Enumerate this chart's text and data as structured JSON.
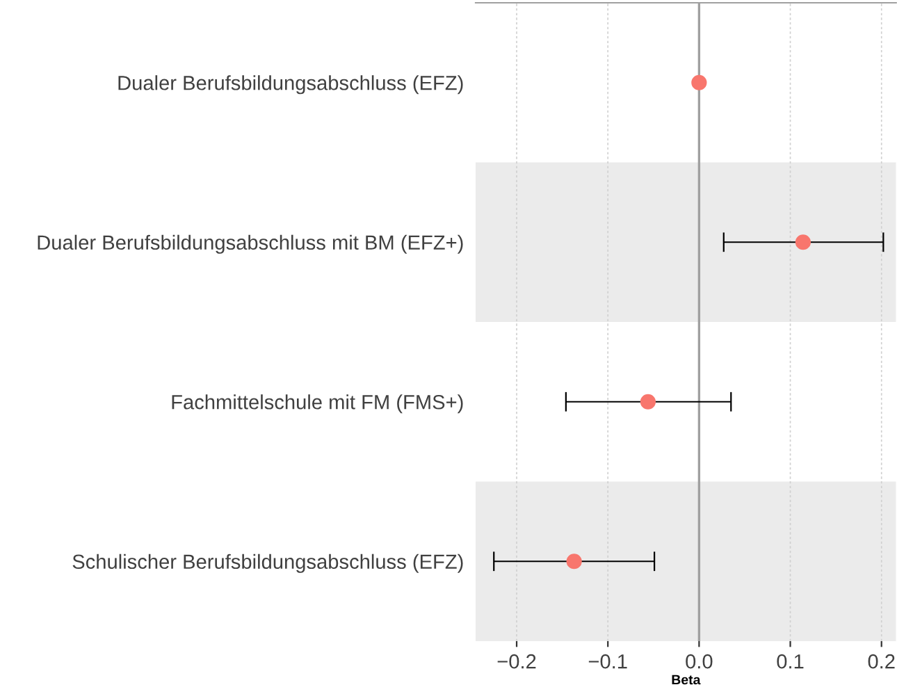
{
  "chart_data": {
    "type": "scatter",
    "orientation": "horizontal",
    "xlabel": "Beta",
    "categories": [
      "Dualer Berufsbildungsabschluss (EFZ)",
      "Dualer Berufsbildungsabschluss mit BM (EFZ+)",
      "Fachmittelschule mit FM (FMS+)",
      "Schulischer Berufsbildungsabschluss (EFZ)"
    ],
    "values": [
      0.0,
      0.114,
      -0.056,
      -0.137
    ],
    "errors": [
      null,
      [
        0.027,
        0.202
      ],
      [
        -0.146,
        0.035
      ],
      [
        -0.225,
        -0.049
      ]
    ],
    "color": "#f8766d",
    "marker": "circle",
    "xlim": [
      -0.245,
      0.216
    ],
    "xticks": [
      {
        "value": -0.2,
        "label": "−0.2"
      },
      {
        "value": -0.1,
        "label": "−0.1"
      },
      {
        "value": 0.0,
        "label": "0.0"
      },
      {
        "value": 0.1,
        "label": "0.1"
      },
      {
        "value": 0.2,
        "label": "0.2"
      }
    ],
    "grid": "x",
    "ref_lines": [
      {
        "axis": "x",
        "value": 0.0,
        "color": "#a0a0a0"
      }
    ],
    "bands": [
      {
        "axis": "y",
        "from": "Dualer Berufsbildungsabschluss mit BM (EFZ+)",
        "to": "Dualer Berufsbildungsabschluss mit BM (EFZ+)",
        "color": "#ebebeb"
      },
      {
        "axis": "y",
        "from": "Schulischer Berufsbildungsabschluss (EFZ)",
        "to": "Schulischer Berufsbildungsabschluss (EFZ)",
        "color": "#ebebeb"
      }
    ]
  }
}
